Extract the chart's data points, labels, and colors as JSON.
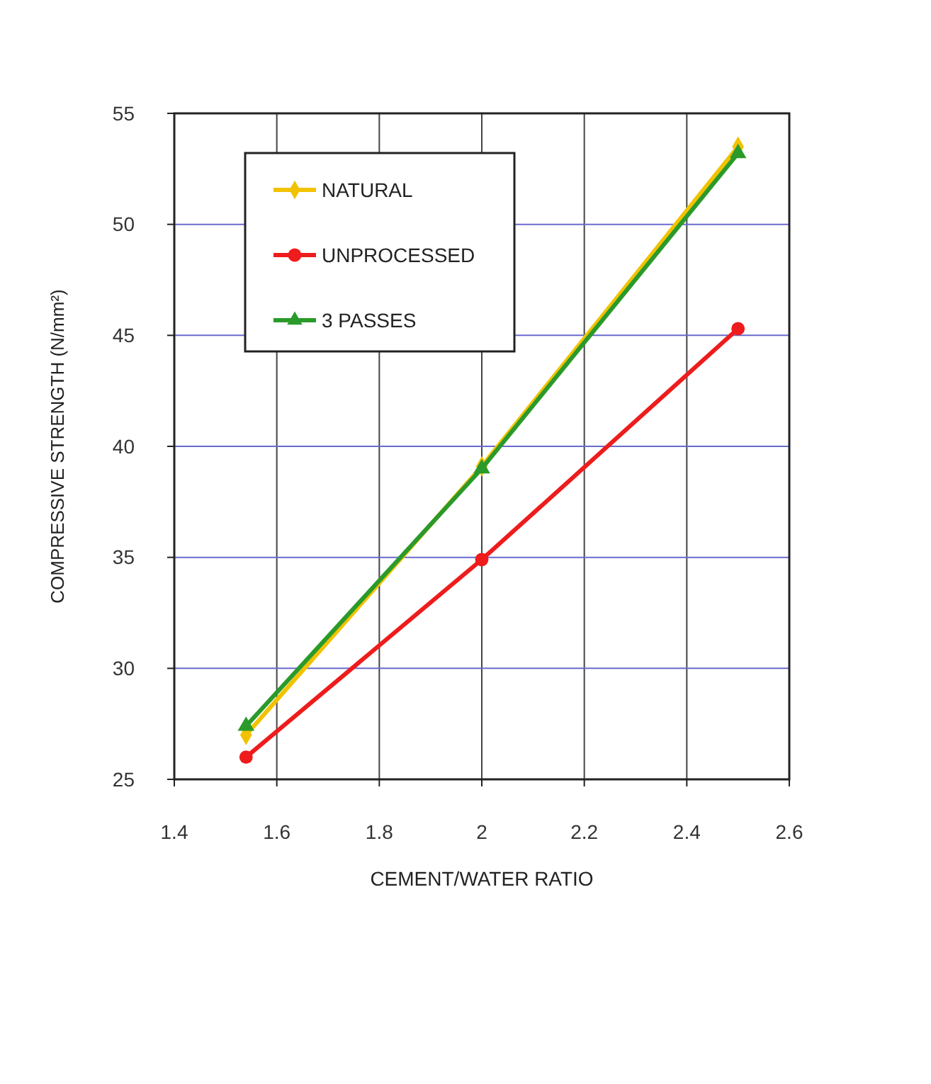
{
  "chart_data": {
    "type": "line",
    "xlabel": "CEMENT/WATER RATIO",
    "ylabel": "COMPRESSIVE STRENGTH (N/mm²)",
    "x": [
      1.54,
      2.0,
      2.5
    ],
    "series": [
      {
        "name": "NATURAL",
        "color": "#f2c200",
        "values": [
          27.0,
          39.1,
          53.5
        ],
        "marker": "diamond"
      },
      {
        "name": "UNPROCESSED",
        "color": "#ee1c1c",
        "values": [
          26.0,
          34.9,
          45.3
        ],
        "marker": "circle"
      },
      {
        "name": "3 PASSES",
        "color": "#2a9a2a",
        "values": [
          27.4,
          39.0,
          53.2
        ],
        "marker": "triangle"
      }
    ],
    "xlim": [
      1.4,
      2.6
    ],
    "xticks": [
      1.4,
      1.6,
      1.8,
      2,
      2.2,
      2.4,
      2.6
    ],
    "ylim": [
      25,
      55
    ],
    "yticks": [
      25,
      30,
      35,
      40,
      45,
      50,
      55
    ],
    "grid": true,
    "legend": "top left",
    "line_style": "solid"
  }
}
